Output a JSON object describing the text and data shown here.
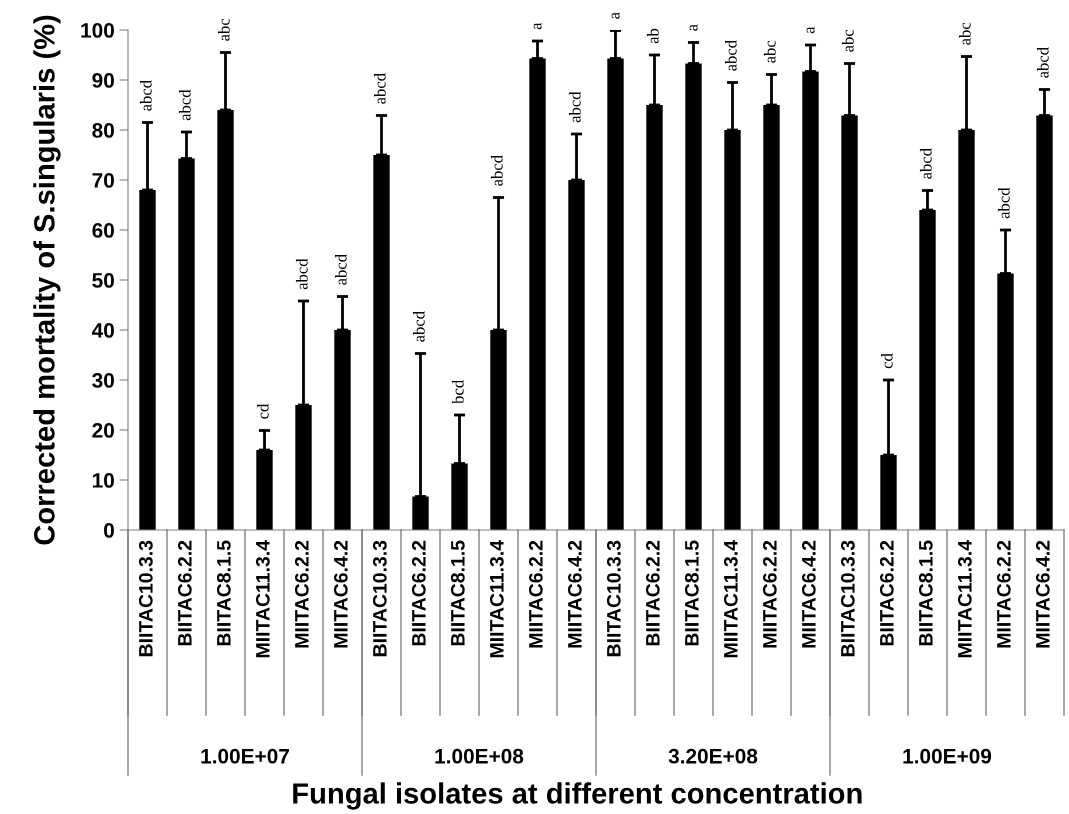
{
  "chart_data": {
    "type": "bar",
    "ylabel": "Corrected mortality of S.singularis (%)",
    "xlabel": "Fungal isolates at different concentration",
    "categories": [
      "BIITAC10.3.3",
      "BIITAC6.2.2",
      "BIITAC8.1.5",
      "MIITAC11.3.4",
      "MIITAC6.2.2",
      "MIITAC6.4.2",
      "BIITAC10.3.3",
      "BIITAC6.2.2",
      "BIITAC8.1.5",
      "MIITAC11.3.4",
      "MIITAC6.2.2",
      "MIITAC6.4.2",
      "BIITAC10.3.3",
      "BIITAC6.2.2",
      "BIITAC8.1.5",
      "MIITAC11.3.4",
      "MIITAC6.2.2",
      "MIITAC6.4.2",
      "BIITAC10.3.3",
      "BIITAC6.2.2",
      "BIITAC8.1.5",
      "MIITAC11.3.4",
      "MIITAC6.2.2",
      "MIITAC6.4.2"
    ],
    "values": [
      68,
      74.3,
      84,
      16,
      25,
      40,
      75,
      6.7,
      13.3,
      40,
      94.3,
      70,
      94.3,
      85,
      93.3,
      80,
      85,
      91.7,
      82.9,
      15,
      64,
      80,
      51.3,
      82.9
    ],
    "errors": [
      [
        68,
        81.5
      ],
      [
        74.3,
        79.6
      ],
      [
        84,
        95.5
      ],
      [
        16,
        19.9
      ],
      [
        25,
        45.8
      ],
      [
        40,
        46.7
      ],
      [
        75,
        82.9
      ],
      [
        6.7,
        35.3
      ],
      [
        13.3,
        23
      ],
      [
        40,
        66.5
      ],
      [
        94.3,
        97.8
      ],
      [
        70,
        79.2
      ],
      [
        94.3,
        99.9
      ],
      [
        85,
        95
      ],
      [
        93.3,
        97.5
      ],
      [
        80,
        89.5
      ],
      [
        85,
        91.1
      ],
      [
        91.7,
        97
      ],
      [
        82.9,
        93.3
      ],
      [
        15,
        30
      ],
      [
        64,
        67.9
      ],
      [
        80,
        94.7
      ],
      [
        51.3,
        60
      ],
      [
        82.9,
        88.1
      ]
    ],
    "color": "#000000",
    "ylim": [
      0,
      100
    ],
    "yticks": [
      0,
      10,
      20,
      30,
      40,
      50,
      60,
      70,
      80,
      90,
      100
    ],
    "grid": false,
    "annotations": [
      "1.00E+07",
      "1.00E+08",
      "3.20E+08",
      "1.00E+09",
      "abcd",
      "abcd",
      "abc",
      "cd",
      "abcd",
      "abcd",
      "abcd",
      "abcd",
      "bcd",
      "abcd",
      "a",
      "abcd",
      "a",
      "ab",
      "a",
      "abcd",
      "abc",
      "a",
      "abc",
      "cd",
      "abcd",
      "abc",
      "abcd",
      "abcd"
    ]
  }
}
